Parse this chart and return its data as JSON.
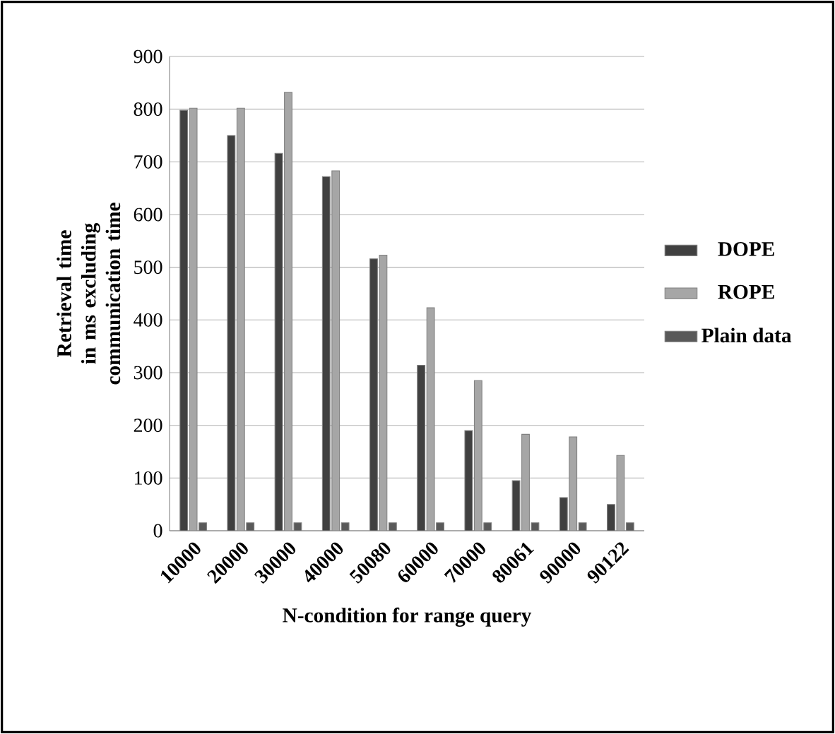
{
  "chart_data": {
    "type": "bar",
    "xlabel": "N-condition for range query",
    "ylabel": "Retrieval time in ms excluding communication time",
    "categories": [
      "10000",
      "20000",
      "30000",
      "40000",
      "50080",
      "60000",
      "70000",
      "80061",
      "90000",
      "90122"
    ],
    "series": [
      {
        "name": "DOPE",
        "color": "#404040",
        "values": [
          798,
          750,
          716,
          672,
          516,
          314,
          190,
          95,
          63,
          50
        ]
      },
      {
        "name": "ROPE",
        "color": "#a6a6a6",
        "values": [
          802,
          802,
          832,
          683,
          523,
          423,
          285,
          183,
          178,
          143
        ]
      },
      {
        "name": "Plain data",
        "color": "#595959",
        "values": [
          15,
          15,
          15,
          15,
          15,
          15,
          15,
          15,
          15,
          15
        ]
      }
    ],
    "ylim": [
      0,
      900
    ],
    "yticks": [
      0,
      100,
      200,
      300,
      400,
      500,
      600,
      700,
      800,
      900
    ],
    "grid": "y",
    "legend": "right"
  }
}
